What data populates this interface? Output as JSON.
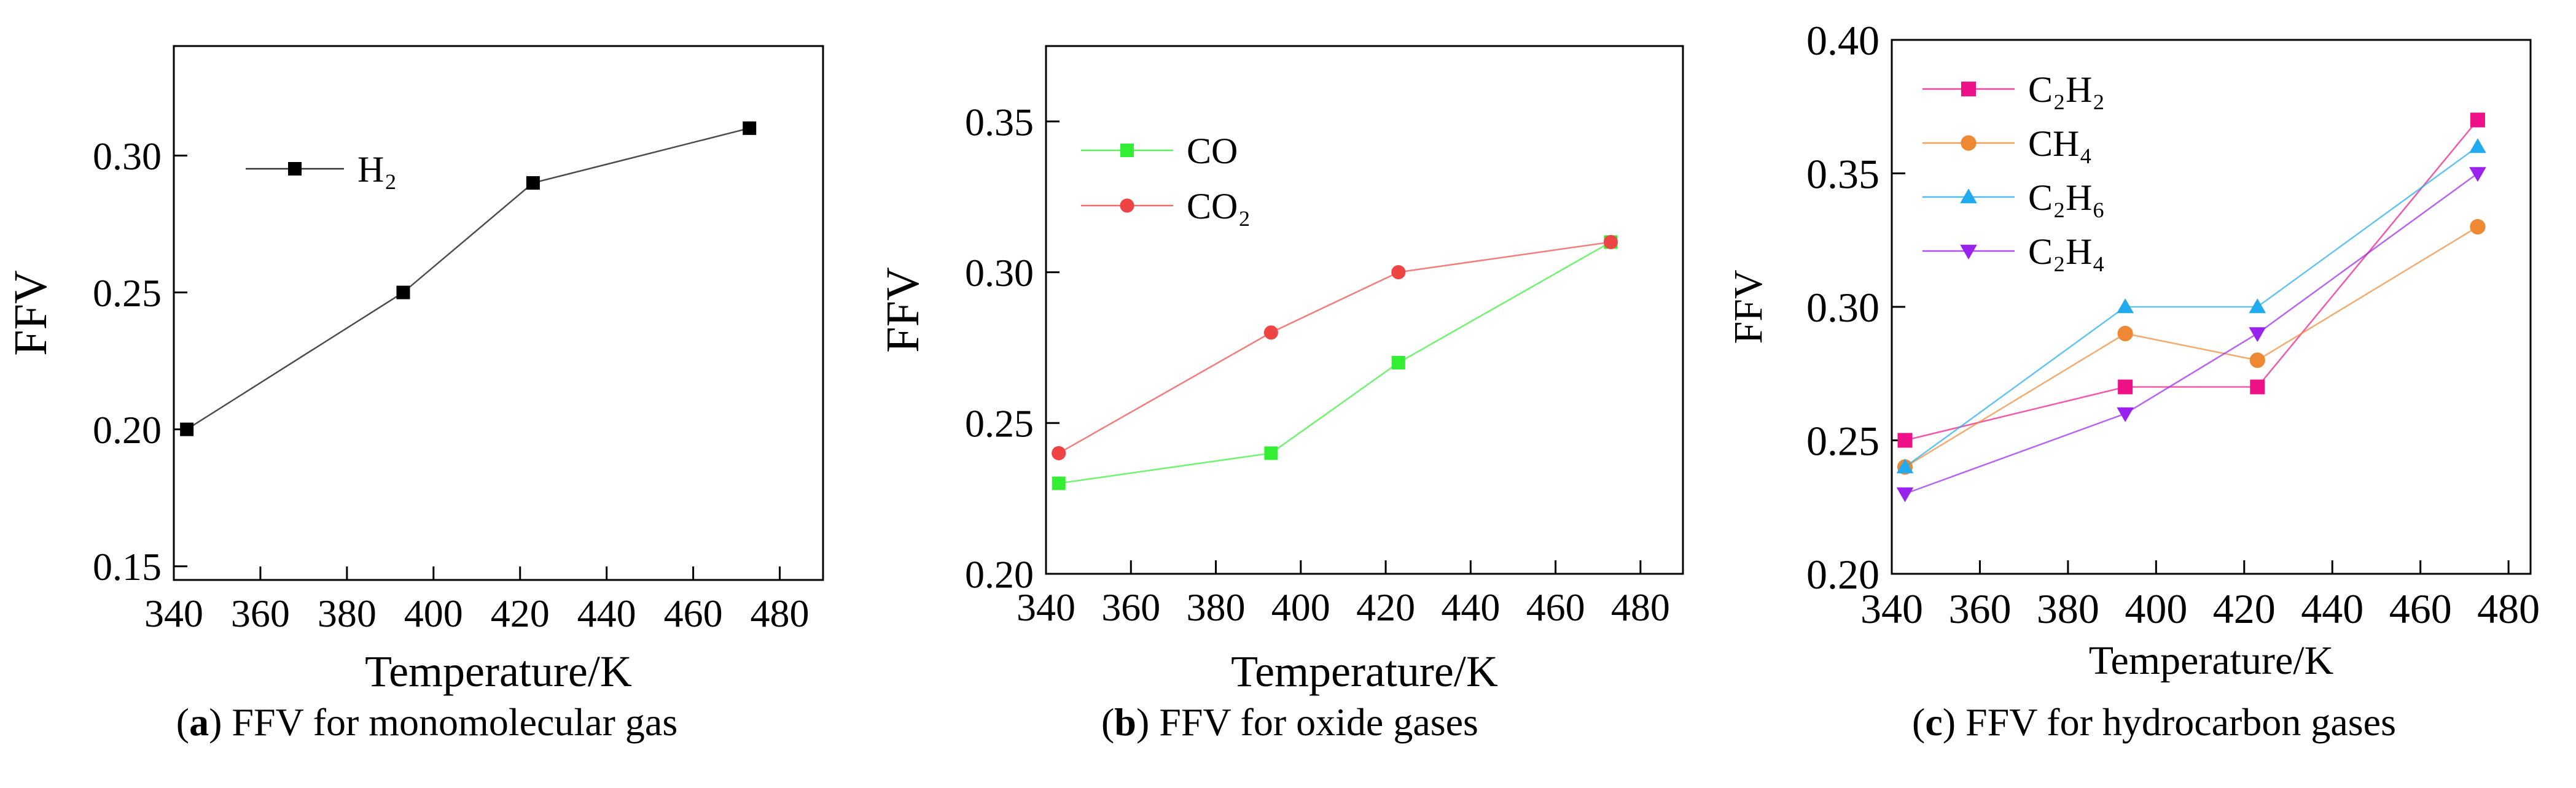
{
  "chart_data": [
    {
      "id": "a",
      "type": "line",
      "caption_letter": "a",
      "caption_text": "FFV for monomolecular gas",
      "xlabel": "Temperature/K",
      "ylabel": "FFV",
      "xlim": [
        340,
        490
      ],
      "ylim": [
        0.145,
        0.34
      ],
      "xticks": [
        340,
        360,
        380,
        400,
        420,
        440,
        460,
        480
      ],
      "yticks": [
        0.15,
        0.2,
        0.25,
        0.3
      ],
      "ytick_labels": [
        "0.15",
        "0.20",
        "0.25",
        "0.30"
      ],
      "legend_position": "top-left",
      "series": [
        {
          "name": "H₂",
          "color": "#000000",
          "marker": "square",
          "x": [
            343,
            393,
            423,
            473
          ],
          "y": [
            0.2,
            0.25,
            0.29,
            0.31
          ]
        }
      ]
    },
    {
      "id": "b",
      "type": "line",
      "caption_letter": "b",
      "caption_text": "FFV for oxide gases",
      "xlabel": "Temperature/K",
      "ylabel": "FFV",
      "xlim": [
        340,
        490
      ],
      "ylim": [
        0.2,
        0.375
      ],
      "xticks": [
        340,
        360,
        380,
        400,
        420,
        440,
        460,
        480
      ],
      "yticks": [
        0.2,
        0.25,
        0.3,
        0.35
      ],
      "ytick_labels": [
        "0.20",
        "0.25",
        "0.30",
        "0.35"
      ],
      "legend_position": "top-left",
      "series": [
        {
          "name": "CO",
          "color": "#33ee33",
          "marker": "square",
          "x": [
            343,
            393,
            423,
            473
          ],
          "y": [
            0.23,
            0.24,
            0.27,
            0.31
          ]
        },
        {
          "name": "CO₂",
          "color": "#ee4444",
          "marker": "circle",
          "x": [
            343,
            393,
            423,
            473
          ],
          "y": [
            0.24,
            0.28,
            0.3,
            0.31
          ]
        }
      ]
    },
    {
      "id": "c",
      "type": "line",
      "caption_letter": "c",
      "caption_text": "FFV for hydrocarbon gases",
      "xlabel": "Temperature/K",
      "ylabel": "FFV",
      "xlim": [
        340,
        485
      ],
      "ylim": [
        0.2,
        0.4
      ],
      "xticks": [
        340,
        360,
        380,
        400,
        420,
        440,
        460,
        480
      ],
      "yticks": [
        0.2,
        0.25,
        0.3,
        0.35,
        0.4
      ],
      "ytick_labels": [
        "0.20",
        "0.25",
        "0.30",
        "0.35",
        "0.40"
      ],
      "legend_position": "top-left",
      "series": [
        {
          "name": "C₂H₂",
          "color": "#ee1188",
          "marker": "square",
          "x": [
            343,
            393,
            423,
            473
          ],
          "y": [
            0.25,
            0.27,
            0.27,
            0.37
          ]
        },
        {
          "name": "CH₄",
          "color": "#ee8833",
          "marker": "circle",
          "x": [
            343,
            393,
            423,
            473
          ],
          "y": [
            0.24,
            0.29,
            0.28,
            0.33
          ]
        },
        {
          "name": "C₂H₆",
          "color": "#22aaee",
          "marker": "triangle-up",
          "x": [
            343,
            393,
            423,
            473
          ],
          "y": [
            0.24,
            0.3,
            0.3,
            0.36
          ]
        },
        {
          "name": "C₂H₄",
          "color": "#9922ee",
          "marker": "triangle-down",
          "x": [
            343,
            393,
            423,
            473
          ],
          "y": [
            0.23,
            0.26,
            0.29,
            0.35
          ]
        }
      ]
    }
  ]
}
